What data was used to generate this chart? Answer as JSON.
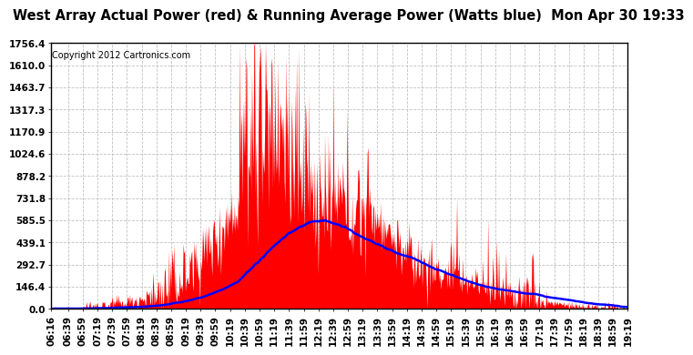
{
  "title": "West Array Actual Power (red) & Running Average Power (Watts blue)  Mon Apr 30 19:33",
  "copyright": "Copyright 2012 Cartronics.com",
  "yticks": [
    0.0,
    146.4,
    292.7,
    439.1,
    585.5,
    731.8,
    878.2,
    1024.6,
    1170.9,
    1317.3,
    1463.7,
    1610.0,
    1756.4
  ],
  "ymin": 0.0,
  "ymax": 1756.4,
  "bg_color": "#ffffff",
  "plot_bg_color": "#ffffff",
  "grid_color": "#bbbbbb",
  "red_color": "#ff0000",
  "blue_color": "#0000ff",
  "title_fontsize": 10.5,
  "copyright_fontsize": 7,
  "tick_fontsize": 7.5,
  "xtick_labels": [
    "06:16",
    "06:39",
    "06:59",
    "07:19",
    "07:39",
    "07:59",
    "08:19",
    "08:39",
    "08:59",
    "09:19",
    "09:39",
    "09:59",
    "10:19",
    "10:39",
    "10:59",
    "11:19",
    "11:39",
    "11:59",
    "12:19",
    "12:39",
    "12:59",
    "13:19",
    "13:39",
    "13:59",
    "14:19",
    "14:39",
    "14:59",
    "15:19",
    "15:39",
    "15:59",
    "16:19",
    "16:39",
    "16:59",
    "17:19",
    "17:39",
    "17:59",
    "18:19",
    "18:39",
    "18:59",
    "19:19"
  ]
}
